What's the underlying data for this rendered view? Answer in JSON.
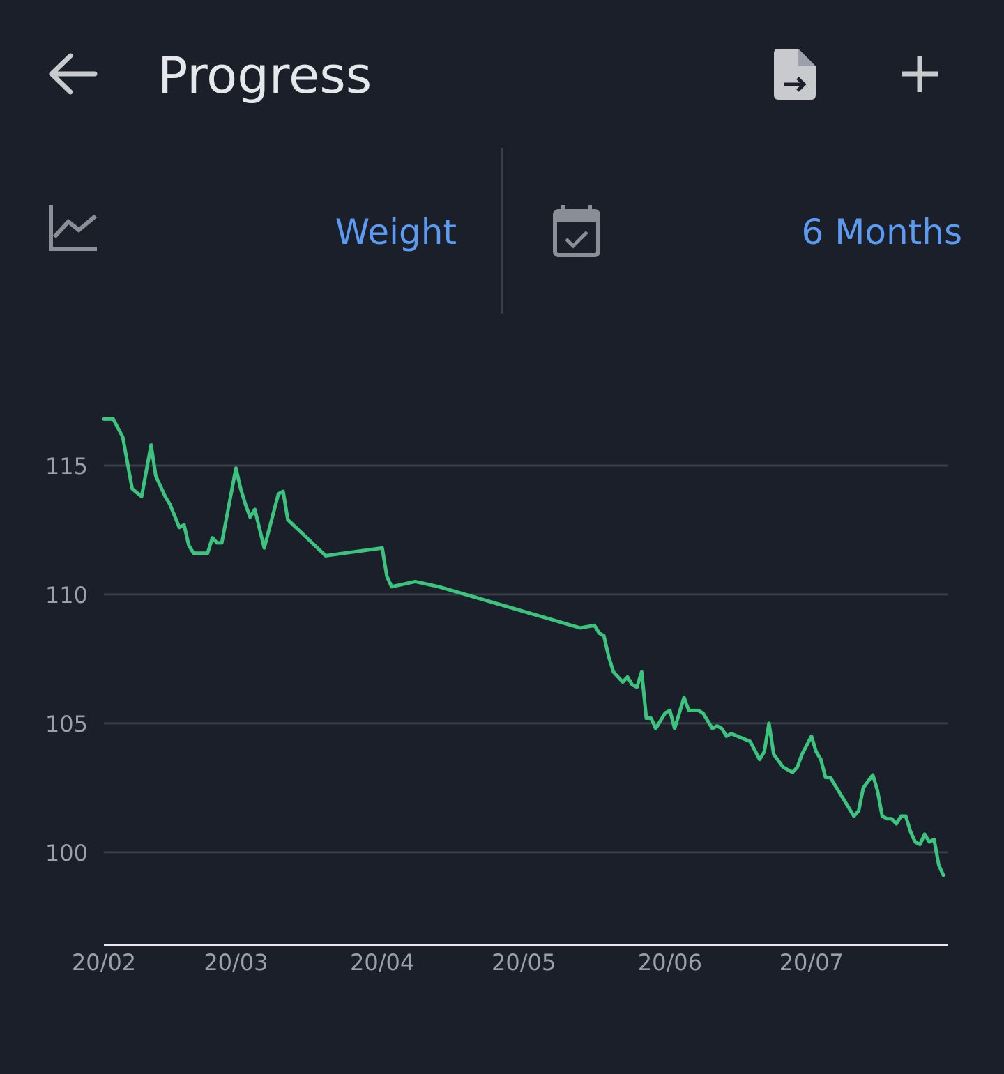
{
  "header": {
    "title": "Progress"
  },
  "selector": {
    "metric": "Weight",
    "period": "6 Months"
  },
  "chart_data": {
    "type": "line",
    "color": "#3cc47f",
    "x": [
      "20/02",
      "22/02",
      "24/02",
      "26/02",
      "28/02",
      "02/03",
      "03/03",
      "05/03",
      "06/03",
      "08/03",
      "09/03",
      "10/03",
      "11/03",
      "14/03",
      "15/03",
      "16/03",
      "17/03",
      "20/03",
      "21/03",
      "22/03",
      "23/03",
      "24/03",
      "26/03",
      "29/03",
      "30/03",
      "31/03",
      "04/04",
      "08/04",
      "20/04",
      "21/04",
      "22/04",
      "27/04",
      "02/05",
      "01/06",
      "04/06",
      "05/06",
      "06/06",
      "07/06",
      "08/06",
      "10/06",
      "11/06",
      "12/06",
      "13/06",
      "14/06",
      "15/06",
      "16/06",
      "17/06",
      "19/06",
      "20/06",
      "21/06",
      "23/06",
      "24/06",
      "26/06",
      "27/06",
      "29/06",
      "30/06",
      "01/07",
      "02/07",
      "03/07",
      "07/07",
      "09/07",
      "10/07",
      "11/07",
      "12/07",
      "14/07",
      "16/07",
      "17/07",
      "18/07",
      "20/07",
      "21/07",
      "22/07",
      "23/07",
      "24/07",
      "29/07",
      "30/07",
      "31/07",
      "02/08",
      "03/08",
      "04/08",
      "05/08",
      "06/08",
      "07/08",
      "08/08",
      "09/08",
      "10/08",
      "11/08",
      "12/08",
      "13/08",
      "14/08",
      "15/08",
      "16/08",
      "17/08"
    ],
    "values": [
      116.8,
      116.8,
      116.1,
      114.1,
      113.8,
      115.8,
      114.6,
      113.8,
      113.5,
      112.6,
      112.7,
      111.9,
      111.6,
      111.6,
      112.2,
      112.0,
      112.0,
      114.9,
      114.1,
      113.5,
      113.0,
      113.3,
      111.8,
      113.9,
      114.0,
      112.9,
      112.2,
      111.5,
      111.8,
      110.7,
      110.3,
      110.5,
      110.3,
      108.7,
      108.8,
      108.5,
      108.4,
      107.6,
      107.0,
      106.6,
      106.8,
      106.5,
      106.4,
      107.0,
      105.2,
      105.2,
      104.8,
      105.4,
      105.5,
      104.8,
      106.0,
      105.5,
      105.5,
      105.4,
      104.8,
      104.9,
      104.8,
      104.5,
      104.6,
      104.3,
      103.6,
      103.9,
      105.0,
      103.8,
      103.3,
      103.1,
      103.3,
      103.8,
      104.5,
      103.9,
      103.6,
      102.9,
      102.9,
      101.4,
      101.6,
      102.5,
      103.0,
      102.4,
      101.4,
      101.3,
      101.3,
      101.1,
      101.4,
      101.4,
      100.8,
      100.4,
      100.3,
      100.7,
      100.4,
      100.5,
      99.5,
      99.1
    ],
    "xlim": [
      "20/02",
      "18/08"
    ],
    "xticks": [
      "20/02",
      "20/03",
      "20/04",
      "20/05",
      "20/06",
      "20/07"
    ],
    "ylim": [
      96.4,
      118
    ],
    "yticks": [
      100,
      105,
      110,
      115
    ],
    "grid": true
  }
}
